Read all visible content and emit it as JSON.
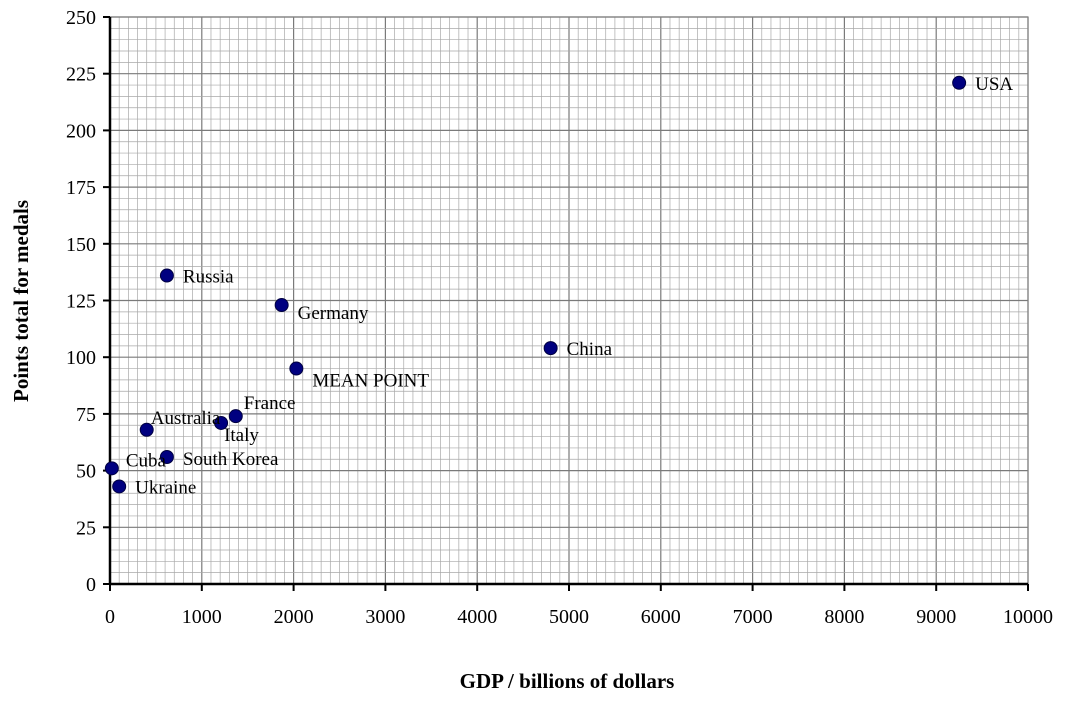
{
  "chart_data": {
    "type": "scatter",
    "title": "",
    "xlabel": "GDP / billions of dollars",
    "ylabel": "Points total for medals",
    "xlim": [
      0,
      10000
    ],
    "ylim": [
      0,
      250
    ],
    "x_major_step": 1000,
    "y_major_step": 25,
    "x_ticks": [
      "0",
      "1000",
      "2000",
      "3000",
      "4000",
      "5000",
      "6000",
      "7000",
      "8000",
      "9000",
      "10000"
    ],
    "y_ticks": [
      "0",
      "25",
      "50",
      "75",
      "100",
      "125",
      "150",
      "175",
      "200",
      "225",
      "250"
    ],
    "grid": true,
    "legend": "none",
    "marker_color": "#000080",
    "points": [
      {
        "label": "USA",
        "x": 9250,
        "y": 221
      },
      {
        "label": "China",
        "x": 4800,
        "y": 104
      },
      {
        "label": "MEAN POINT",
        "x": 2030,
        "y": 95
      },
      {
        "label": "Germany",
        "x": 1870,
        "y": 123
      },
      {
        "label": "France",
        "x": 1370,
        "y": 74
      },
      {
        "label": "Italy",
        "x": 1210,
        "y": 71
      },
      {
        "label": "Russia",
        "x": 620,
        "y": 136
      },
      {
        "label": "South Korea",
        "x": 620,
        "y": 56
      },
      {
        "label": "Australia",
        "x": 400,
        "y": 68
      },
      {
        "label": "Cuba",
        "x": 20,
        "y": 51
      },
      {
        "label": "Ukraine",
        "x": 100,
        "y": 43
      }
    ]
  }
}
